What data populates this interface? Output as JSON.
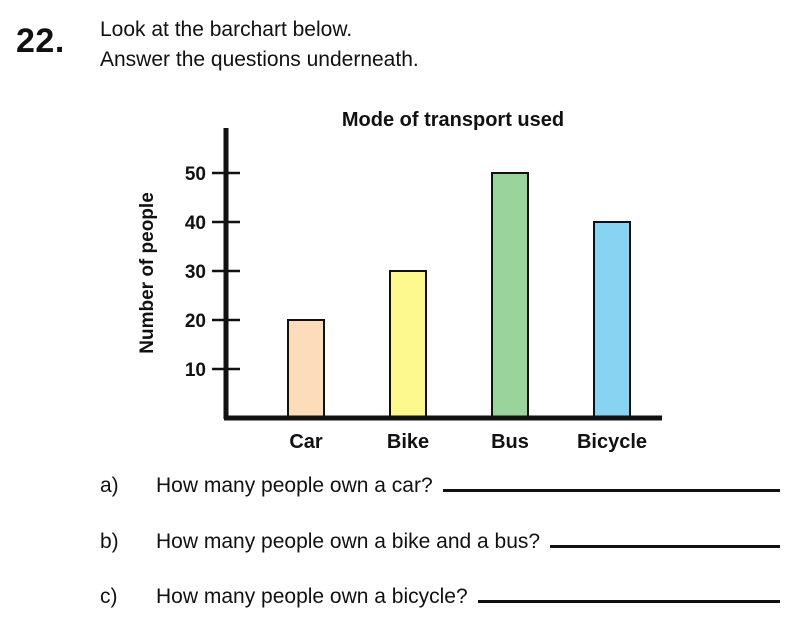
{
  "question": {
    "number": "22.",
    "instruction_line1": "Look at the barchart below.",
    "instruction_line2": "Answer the questions underneath."
  },
  "chart_data": {
    "type": "bar",
    "title": "Mode of transport used",
    "xlabel": "",
    "ylabel": "Number of people",
    "categories": [
      "Car",
      "Bike",
      "Bus",
      "Bicycle"
    ],
    "values": [
      20,
      30,
      50,
      40
    ],
    "yticks": [
      10,
      20,
      30,
      40,
      50
    ],
    "ylim": [
      0,
      60
    ],
    "grid": false,
    "colors": [
      "#fddcb9",
      "#fdf98f",
      "#9bd49b",
      "#87d3f2"
    ]
  },
  "subquestions": [
    {
      "letter": "a)",
      "text": "How many people own a car?"
    },
    {
      "letter": "b)",
      "text": "How many people own a bike and a bus?"
    },
    {
      "letter": "c)",
      "text": "How many people own a bicycle?"
    }
  ]
}
